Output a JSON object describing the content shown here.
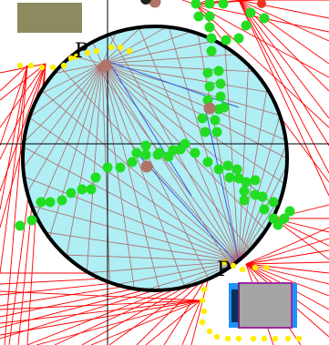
{
  "labels": {
    "top_point": "P",
    "bottom_point": "P"
  },
  "colors": {
    "background": "#ffffff",
    "ray_red": "#ff0000",
    "ray_inside": "#b06a6a",
    "ray_blue": "#3a5de0",
    "circle_fill": "#aeeef4",
    "circle_stroke": "#000000",
    "axis": "#000000",
    "green": "#22dd22",
    "yellow": "#ffee00",
    "brown": "#b07468",
    "box_tan": "#8c8a5e",
    "car_body": "#a5a5a5",
    "car_frame": "#1e90ff",
    "car_outline": "#9c2aa0"
  }
}
